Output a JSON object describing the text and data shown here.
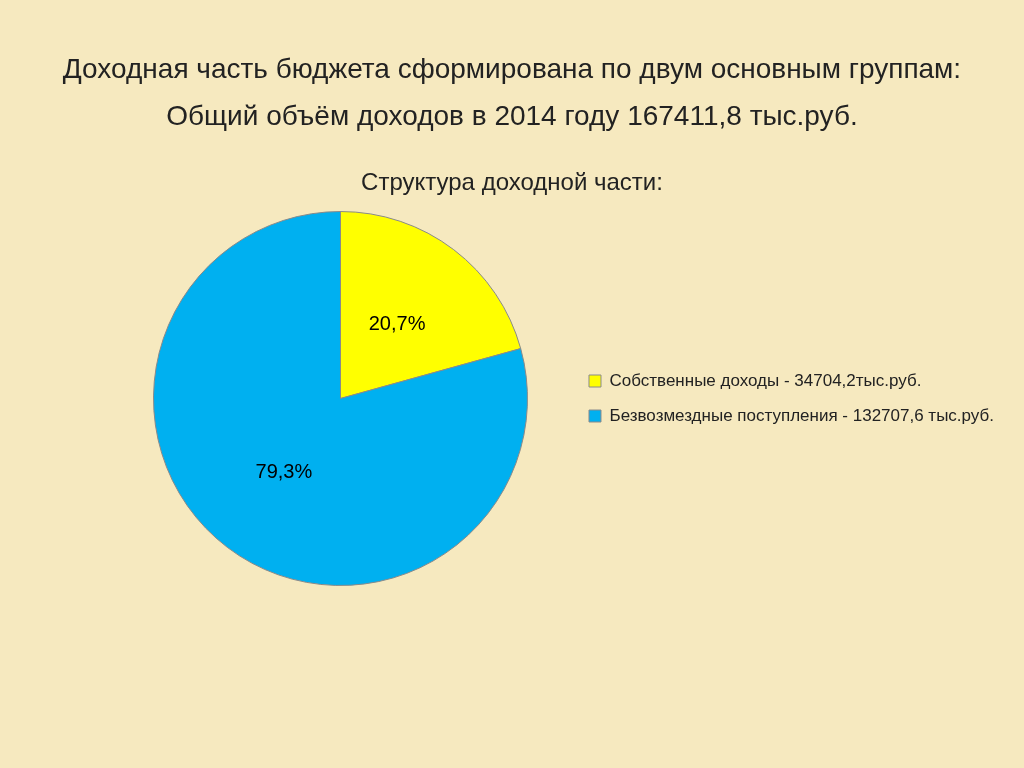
{
  "chart_data": {
    "type": "pie",
    "title": "Доходная часть бюджета сформирована по двум основным группам:",
    "subtitle": "Общий объём доходов в 2014 году 167411,8 тыс.руб.",
    "annotations": [
      "Структура доходной части:"
    ],
    "categories": [
      "Собственные доходы - 34704,2тыс.руб.",
      "Безвозмездные поступления - 132707,6 тыс.руб."
    ],
    "values": [
      20.7,
      79.3
    ],
    "colors": [
      "#ffff00",
      "#00b0f0"
    ],
    "value_labels": [
      "20,7%",
      "79,3%"
    ],
    "legend": "right"
  }
}
